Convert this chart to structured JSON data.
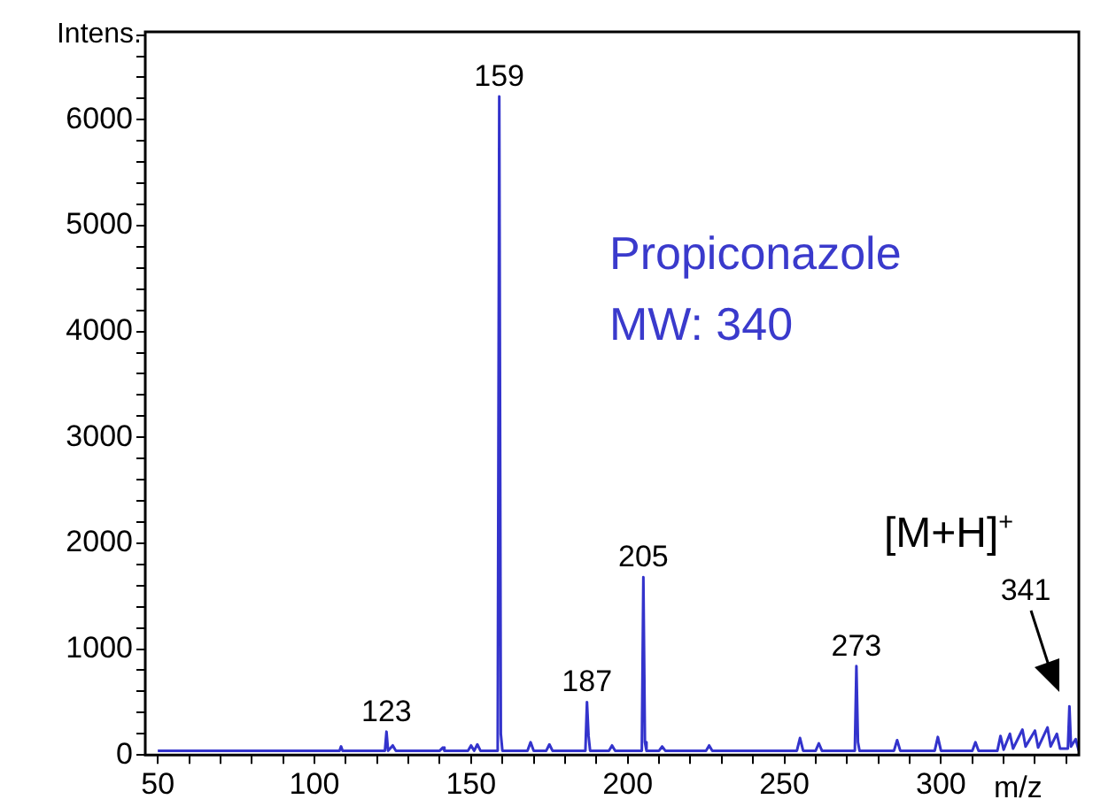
{
  "chart_data": {
    "type": "line",
    "xlabel": "m/z",
    "ylabel": "Intens.",
    "x": [
      50,
      108,
      108.5,
      109,
      122.5,
      123,
      123.5,
      125,
      126,
      140,
      141,
      141.5,
      149,
      150,
      151,
      152,
      153,
      158.5,
      159,
      159.5,
      160,
      168,
      169,
      170,
      174,
      175,
      176,
      186.5,
      187,
      187.5,
      188,
      194,
      195,
      196,
      204.5,
      205,
      205.5,
      206,
      210,
      211,
      212,
      225,
      226,
      227,
      254,
      255,
      256,
      260,
      261,
      262,
      272.5,
      273,
      273.5,
      274,
      285,
      286,
      287,
      298,
      299,
      300,
      310,
      311,
      312,
      318,
      319,
      320,
      322,
      323,
      326,
      327,
      330,
      331,
      334,
      335,
      337,
      338,
      340.5,
      341,
      341.5,
      343,
      344
    ],
    "series": [
      {
        "color": "#3333cc",
        "values": [
          40,
          40,
          80,
          40,
          40,
          220,
          40,
          90,
          40,
          40,
          70,
          40,
          40,
          90,
          40,
          100,
          40,
          40,
          6220,
          200,
          40,
          40,
          120,
          40,
          40,
          100,
          40,
          40,
          500,
          180,
          40,
          40,
          90,
          40,
          40,
          1680,
          120,
          40,
          40,
          80,
          40,
          40,
          90,
          40,
          40,
          160,
          40,
          40,
          110,
          40,
          40,
          840,
          120,
          40,
          40,
          140,
          40,
          40,
          170,
          40,
          40,
          120,
          40,
          40,
          180,
          50,
          200,
          60,
          240,
          80,
          230,
          70,
          260,
          80,
          200,
          60,
          60,
          460,
          80,
          150,
          40
        ]
      }
    ],
    "xlim": [
      46,
      344
    ],
    "xticks": [
      50,
      {
        "value": 60,
        "label": null
      },
      {
        "value": 70,
        "label": null
      },
      {
        "value": 80,
        "label": null
      },
      {
        "value": 90,
        "label": null
      },
      100,
      {
        "value": 110,
        "label": null
      },
      {
        "value": 120,
        "label": null
      },
      {
        "value": 130,
        "label": null
      },
      {
        "value": 140,
        "label": null
      },
      150,
      {
        "value": 160,
        "label": null
      },
      {
        "value": 170,
        "label": null
      },
      {
        "value": 180,
        "label": null
      },
      {
        "value": 190,
        "label": null
      },
      200,
      {
        "value": 210,
        "label": null
      },
      {
        "value": 220,
        "label": null
      },
      {
        "value": 230,
        "label": null
      },
      {
        "value": 240,
        "label": null
      },
      250,
      {
        "value": 260,
        "label": null
      },
      {
        "value": 270,
        "label": null
      },
      {
        "value": 280,
        "label": null
      },
      {
        "value": 290,
        "label": null
      },
      300,
      {
        "value": 310,
        "label": null
      },
      {
        "value": 320,
        "label": null
      },
      {
        "value": 330,
        "label": null
      },
      {
        "value": 340,
        "label": null
      }
    ],
    "ylim": [
      0,
      6830
    ],
    "yticks": [
      0,
      {
        "value": 200,
        "label": null
      },
      {
        "value": 400,
        "label": null
      },
      {
        "value": 600,
        "label": null
      },
      {
        "value": 800,
        "label": null
      },
      1000,
      {
        "value": 1200,
        "label": null
      },
      {
        "value": 1400,
        "label": null
      },
      {
        "value": 1600,
        "label": null
      },
      {
        "value": 1800,
        "label": null
      },
      2000,
      {
        "value": 2200,
        "label": null
      },
      {
        "value": 2400,
        "label": null
      },
      {
        "value": 2600,
        "label": null
      },
      {
        "value": 2800,
        "label": null
      },
      3000,
      {
        "value": 3200,
        "label": null
      },
      {
        "value": 3400,
        "label": null
      },
      {
        "value": 3600,
        "label": null
      },
      {
        "value": 3800,
        "label": null
      },
      4000,
      {
        "value": 4200,
        "label": null
      },
      {
        "value": 4400,
        "label": null
      },
      {
        "value": 4600,
        "label": null
      },
      {
        "value": 4800,
        "label": null
      },
      5000,
      {
        "value": 5200,
        "label": null
      },
      {
        "value": 5400,
        "label": null
      },
      {
        "value": 5600,
        "label": null
      },
      {
        "value": 5800,
        "label": null
      },
      6000,
      {
        "value": 6200,
        "label": null
      },
      {
        "value": 6400,
        "label": null
      },
      {
        "value": 6600,
        "label": null
      },
      {
        "value": 6800,
        "label": null
      }
    ],
    "grid": false,
    "legend": false,
    "marker": "none",
    "line_style": "solid",
    "annotations": [
      "Propiconazole",
      "MW: 340",
      "[M+H]$^{+}$",
      {
        "text": "123",
        "x": 123,
        "y": 220
      },
      {
        "text": "159",
        "x": 159,
        "y": 6220
      },
      {
        "text": "187",
        "x": 187,
        "y": 500
      },
      {
        "text": "205",
        "x": 205,
        "y": 1680
      },
      {
        "text": "273",
        "x": 273,
        "y": 840
      },
      "341"
    ]
  }
}
